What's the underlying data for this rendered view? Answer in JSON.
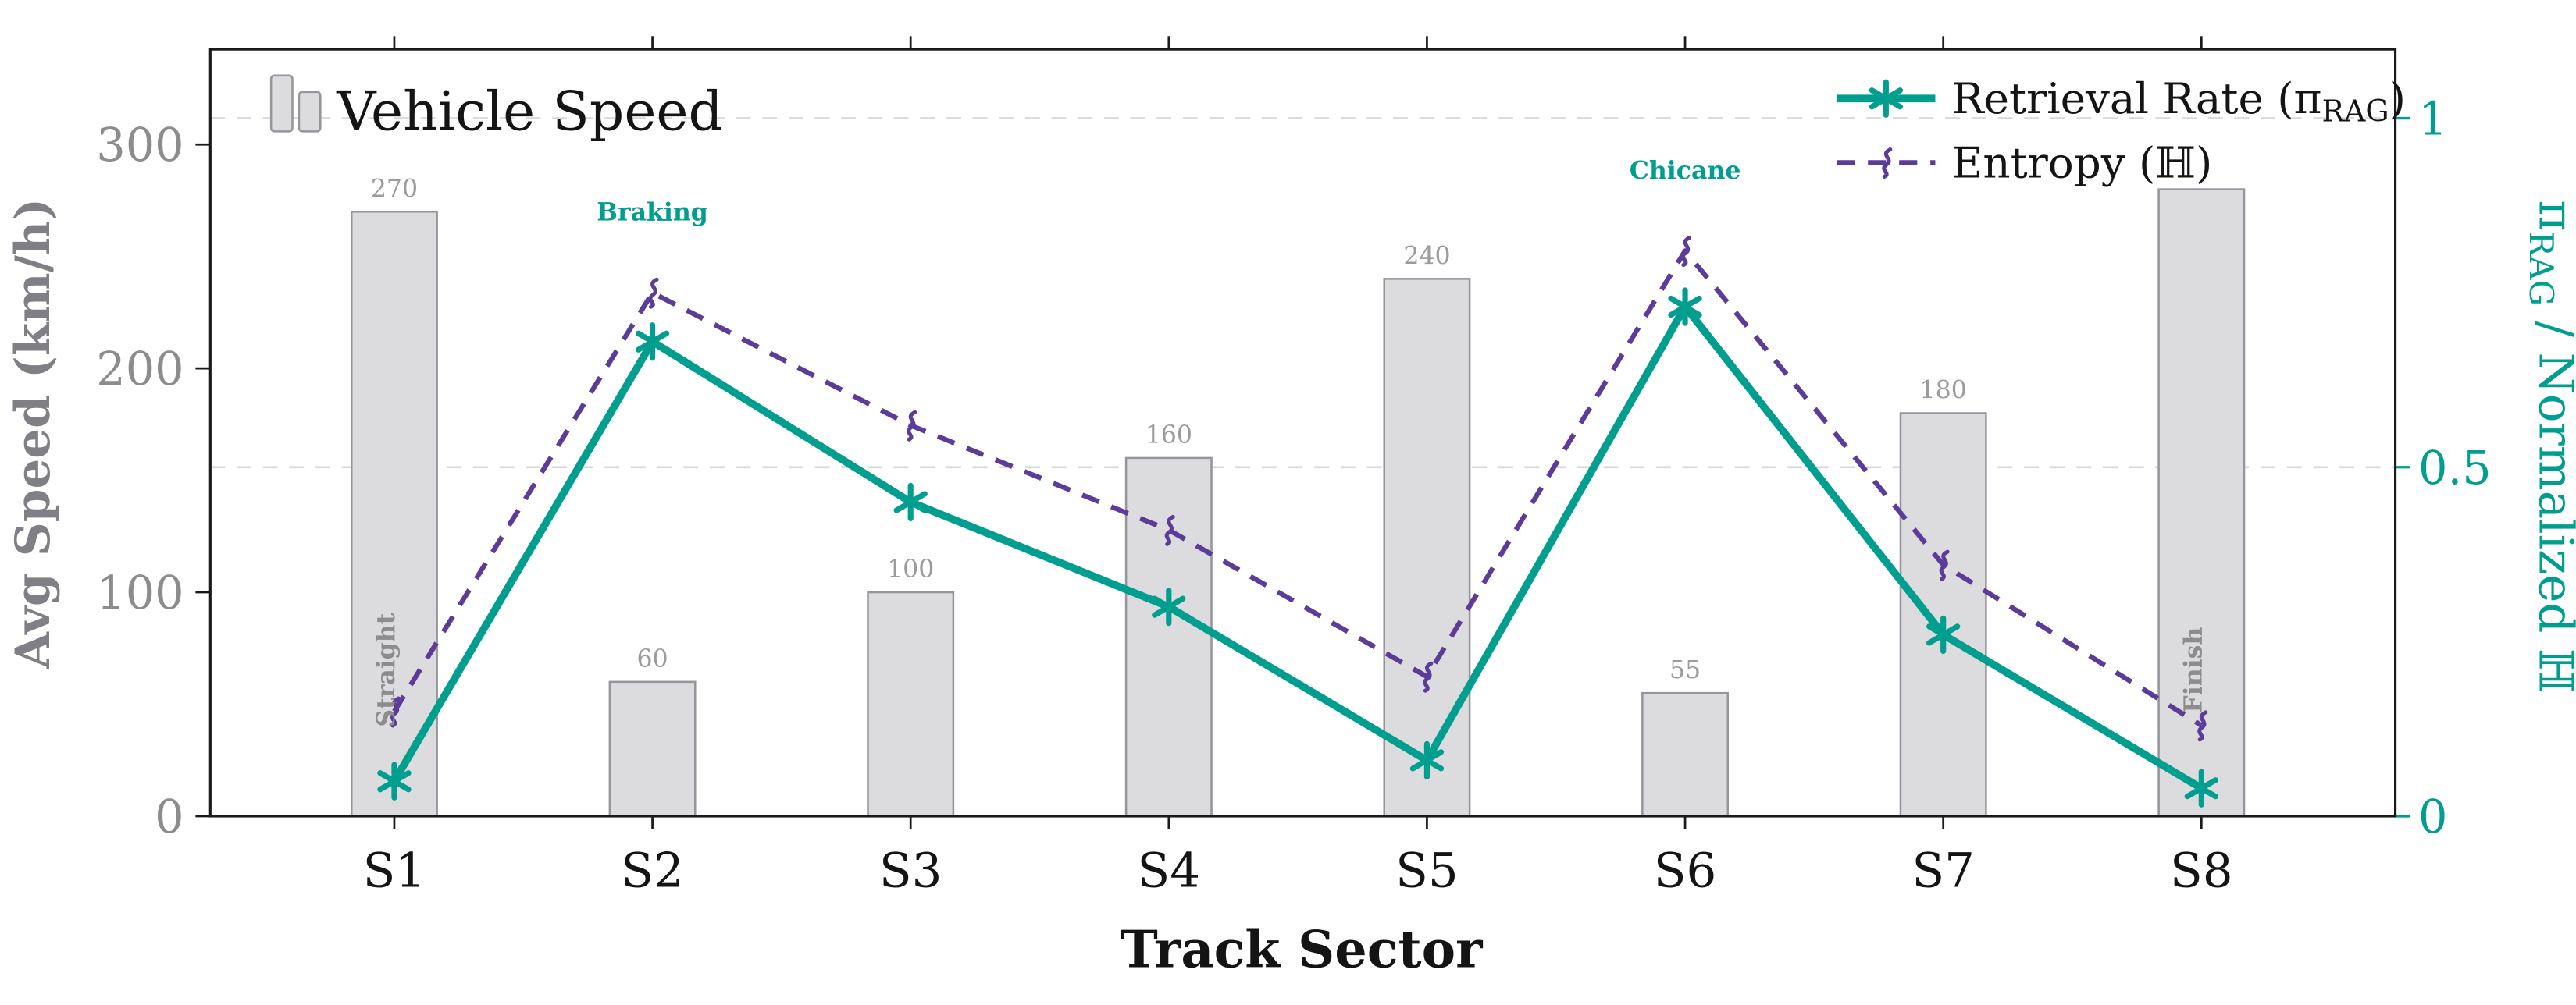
{
  "colors": {
    "teal": "#009e8f",
    "purple": "#5b3c99",
    "bar_fill": "#dcdcdf",
    "bar_stroke": "#95959b",
    "bar_label_gray": "#9b9b9b",
    "axis_gray": "#7f7f85",
    "tick_gray": "#8c8c8c",
    "grid": "#d9d9d9",
    "frame": "#1a1a1a"
  },
  "legend": {
    "bars_label": "Vehicle Speed",
    "retrieval_prefix": "Retrieval Rate (π",
    "retrieval_sub": "RAG",
    "retrieval_suffix": ")",
    "entropy_label": "Entropy (ℍ)"
  },
  "chart_data": {
    "type": "bar+line dual-axis",
    "categories": [
      "S1",
      "S2",
      "S3",
      "S4",
      "S5",
      "S6",
      "S7",
      "S8"
    ],
    "x_axis": {
      "label": "Track Sector"
    },
    "left_axis": {
      "label": "Avg Speed (km/h)",
      "label_parts": {
        "main": "Avg Speed ",
        "units": "(km/h)"
      },
      "ticks": [
        0,
        100,
        200,
        300
      ],
      "range": [
        0,
        342
      ]
    },
    "right_axis": {
      "label": "π_RAG / Normalized ℍ",
      "label_parts": {
        "pi": "π",
        "sub": "RAG",
        "rest": " / Normalized ℍ"
      },
      "ticks": [
        "0",
        "0.5",
        "1"
      ],
      "tick_values": [
        0,
        0.5,
        1
      ],
      "range": [
        0,
        1.1
      ]
    },
    "grid": {
      "horizontal_dashed_at_right_values": [
        0.5,
        1
      ]
    },
    "series": [
      {
        "name": "Vehicle Speed",
        "type": "bar",
        "axis": "left",
        "values": [
          270,
          60,
          100,
          160,
          240,
          55,
          180,
          280
        ],
        "bar_labels": [
          "270",
          "60",
          "100",
          "160",
          "240",
          "55",
          "180",
          ""
        ]
      },
      {
        "name": "Retrieval Rate (π_RAG)",
        "type": "line",
        "axis": "right",
        "marker": "asterisk",
        "values": [
          0.05,
          0.68,
          0.45,
          0.3,
          0.08,
          0.73,
          0.26,
          0.04
        ]
      },
      {
        "name": "Entropy (ℍ)",
        "type": "line",
        "style": "dashed",
        "axis": "right",
        "marker": "squiggle",
        "values": [
          0.15,
          0.75,
          0.56,
          0.41,
          0.2,
          0.81,
          0.36,
          0.13
        ]
      }
    ],
    "annotations": [
      {
        "text": "Braking",
        "sector_index": 1,
        "placement": "above-line"
      },
      {
        "text": "Chicane",
        "sector_index": 5,
        "placement": "above-line"
      },
      {
        "text": "Straight",
        "sector_index": 0,
        "placement": "inside-bar-rotated"
      },
      {
        "text": "Finish",
        "sector_index": 7,
        "placement": "inside-bar-rotated"
      }
    ]
  }
}
